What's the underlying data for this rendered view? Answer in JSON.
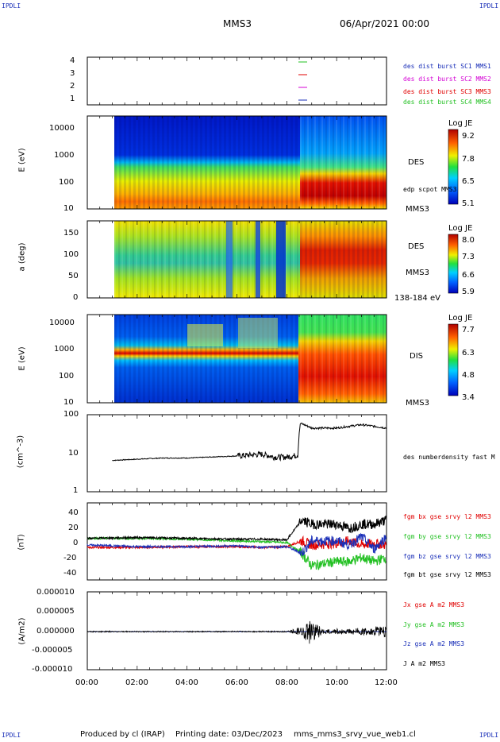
{
  "header": {
    "corner_tl": "IPDLI",
    "corner_tr": "IPDLI",
    "corner_bl": "IPDLI",
    "corner_br": "IPDLI",
    "spacecraft": "MMS3",
    "date": "06/Apr/2021 00:00"
  },
  "footer": {
    "produced_by": "Produced by cl (IRAP)",
    "printing_date": "Printing date: 03/Dec/2023",
    "file": "mms_mms3_srvy_vue_web1.cl"
  },
  "x_axis": {
    "ticks": [
      "00:00",
      "02:00",
      "04:00",
      "06:00",
      "08:00",
      "10:00",
      "12:00"
    ],
    "range_hours": [
      0,
      12
    ]
  },
  "colors": {
    "blue": "#1a2fb8",
    "magenta": "#d400d4",
    "red": "#e00000",
    "green": "#22c022",
    "black": "#000000"
  },
  "panels": {
    "p1": {
      "yticks": [
        "4",
        "3",
        "2",
        "1"
      ],
      "legend": [
        {
          "text": "des dist burst SC1 MMS1",
          "color": "#1a2fb8"
        },
        {
          "text": "des dist burst SC2 MMS2",
          "color": "#d400d4"
        },
        {
          "text": "des dist burst SC3 MMS3",
          "color": "#e00000"
        },
        {
          "text": "des dist burst SC4 MMS4",
          "color": "#22c022"
        }
      ]
    },
    "p2": {
      "ylabel": "E (eV)",
      "yticks": [
        "10000",
        "1000",
        "100",
        "10"
      ],
      "label1": "DES",
      "label2": "edp scpot MMS3",
      "label3": "MMS3",
      "cb_title": "Log JE",
      "cb_ticks": [
        "9.2",
        "7.8",
        "6.5",
        "5.1"
      ]
    },
    "p3": {
      "ylabel": "a (deg)",
      "yticks": [
        "150",
        "100",
        "50",
        "0"
      ],
      "label1": "DES",
      "label2": "MMS3",
      "label3": "138-184 eV",
      "cb_title": "Log JE",
      "cb_ticks": [
        "8.0",
        "7.3",
        "6.6",
        "5.9"
      ]
    },
    "p4": {
      "ylabel": "E (eV)",
      "yticks": [
        "10000",
        "1000",
        "100",
        "10"
      ],
      "label1": "DIS",
      "label2": "MMS3",
      "cb_title": "Log JE",
      "cb_ticks": [
        "7.7",
        "6.3",
        "4.8",
        "3.4"
      ]
    },
    "p5": {
      "ylabel": "(cm^-3)",
      "yticks": [
        "100",
        "10",
        "1"
      ],
      "legend": "des numberdensity fast M"
    },
    "p6": {
      "ylabel": "(nT)",
      "yticks": [
        "40",
        "20",
        "0",
        "-20",
        "-40"
      ],
      "legend": [
        {
          "text": "fgm bx gse srvy l2 MMS3",
          "color": "#e00000"
        },
        {
          "text": "fgm by gse srvy l2 MMS3",
          "color": "#22c022"
        },
        {
          "text": "fgm bz gse srvy l2 MMS3",
          "color": "#1a2fb8"
        },
        {
          "text": "fgm bt gse srvy l2 MMS3",
          "color": "#000000"
        }
      ]
    },
    "p7": {
      "ylabel": "(A/m2)",
      "yticks": [
        "0.000010",
        "0.000005",
        "0.000000",
        "-0.000005",
        "-0.000010"
      ],
      "legend": [
        {
          "text": "Jx gse A m2 MMS3",
          "color": "#e00000"
        },
        {
          "text": "Jy gse A m2 MMS3",
          "color": "#22c022"
        },
        {
          "text": "Jz gse A m2 MMS3",
          "color": "#1a2fb8"
        },
        {
          "text": "J A m2 MMS3",
          "color": "#000000"
        }
      ]
    }
  },
  "chart_data": [
    {
      "type": "line",
      "name": "des numberdensity fast M",
      "ylabel": "(cm^-3)",
      "yscale": "log",
      "ylim": [
        1,
        100
      ],
      "x_hours": [
        1.0,
        2.0,
        3.0,
        4.0,
        5.0,
        6.0,
        6.5,
        7.0,
        7.5,
        8.0,
        8.45,
        8.55,
        9.0,
        9.5,
        10.0,
        10.5,
        11.0,
        11.5,
        12.0
      ],
      "y": [
        6.5,
        7.0,
        7.5,
        7.5,
        8.0,
        8.5,
        9.0,
        9.5,
        8.0,
        8.0,
        9.0,
        60,
        45,
        45,
        45,
        50,
        55,
        50,
        45
      ]
    },
    {
      "type": "line",
      "ylabel": "(nT)",
      "ylim": [
        -45,
        45
      ],
      "x_hours": [
        0.0,
        2.0,
        4.0,
        6.0,
        7.0,
        8.0,
        8.6,
        9.0,
        10.0,
        10.5,
        11.0,
        11.5,
        12.0
      ],
      "series": [
        {
          "name": "fgm bx gse srvy l2 MMS3",
          "values": [
            -3,
            -3,
            -2,
            -2,
            -3,
            -2,
            5,
            0,
            2,
            5,
            0,
            2,
            0
          ]
        },
        {
          "name": "fgm by gse srvy l2 MMS3",
          "values": [
            8,
            8,
            7,
            5,
            4,
            3,
            -10,
            -25,
            -20,
            -20,
            -15,
            -20,
            -15
          ]
        },
        {
          "name": "fgm bz gse srvy l2 MMS3",
          "values": [
            0,
            -2,
            -2,
            -1,
            -3,
            -2,
            -10,
            5,
            5,
            0,
            10,
            -5,
            10
          ]
        },
        {
          "name": "fgm bt gse srvy l2 MMS3",
          "values": [
            8,
            9,
            8,
            7,
            7,
            6,
            30,
            25,
            25,
            20,
            25,
            25,
            30
          ]
        }
      ]
    },
    {
      "type": "line",
      "ylabel": "(A/m2)",
      "ylim": [
        -1e-05,
        1e-05
      ],
      "x_hours": [
        0.0,
        4.0,
        8.0,
        8.6,
        8.9,
        9.5,
        11.5,
        12.0
      ],
      "series": [
        {
          "name": "J A m2 MMS3",
          "values": [
            0,
            0,
            0,
            1.2e-06,
            3e-06,
            5e-07,
            1e-06,
            1.5e-06
          ]
        }
      ]
    },
    {
      "type": "heatmap",
      "name": "DES",
      "ylabel": "E (eV)",
      "yscale": "log",
      "ylim": [
        10,
        30000
      ],
      "colorbar": {
        "title": "Log JE",
        "range": [
          5.1,
          9.2
        ]
      }
    },
    {
      "type": "heatmap",
      "name": "DES",
      "ylabel": "a (deg)",
      "ylim": [
        0,
        180
      ],
      "colorbar": {
        "title": "Log JE",
        "range": [
          5.9,
          8.0
        ]
      }
    },
    {
      "type": "heatmap",
      "name": "DIS",
      "ylabel": "E (eV)",
      "yscale": "log",
      "ylim": [
        10,
        25000
      ],
      "colorbar": {
        "title": "Log JE",
        "range": [
          3.4,
          7.7
        ]
      }
    }
  ]
}
